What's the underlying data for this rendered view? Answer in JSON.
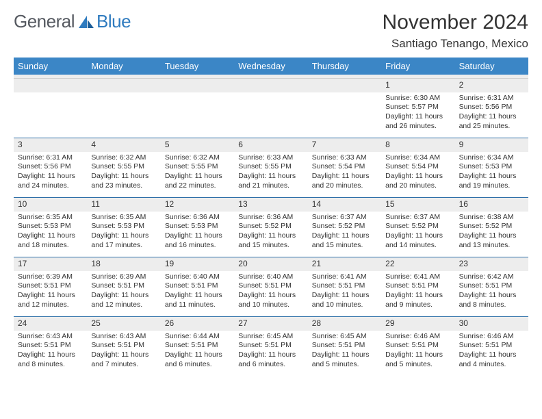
{
  "brand": {
    "text_a": "General",
    "text_b": "Blue",
    "mark_color": "#2f7bbf"
  },
  "title": "November 2024",
  "location": "Santiago Tenango, Mexico",
  "header_bg": "#3b86c6",
  "band_bg": "#ededed",
  "rule_color": "#2d6fa8",
  "text_color": "#333333",
  "weekdays": [
    "Sunday",
    "Monday",
    "Tuesday",
    "Wednesday",
    "Thursday",
    "Friday",
    "Saturday"
  ],
  "weeks": [
    [
      {
        "n": "",
        "empty": true
      },
      {
        "n": "",
        "empty": true
      },
      {
        "n": "",
        "empty": true
      },
      {
        "n": "",
        "empty": true
      },
      {
        "n": "",
        "empty": true
      },
      {
        "n": "1",
        "sunrise": "Sunrise: 6:30 AM",
        "sunset": "Sunset: 5:57 PM",
        "daylight1": "Daylight: 11 hours",
        "daylight2": "and 26 minutes."
      },
      {
        "n": "2",
        "sunrise": "Sunrise: 6:31 AM",
        "sunset": "Sunset: 5:56 PM",
        "daylight1": "Daylight: 11 hours",
        "daylight2": "and 25 minutes."
      }
    ],
    [
      {
        "n": "3",
        "sunrise": "Sunrise: 6:31 AM",
        "sunset": "Sunset: 5:56 PM",
        "daylight1": "Daylight: 11 hours",
        "daylight2": "and 24 minutes."
      },
      {
        "n": "4",
        "sunrise": "Sunrise: 6:32 AM",
        "sunset": "Sunset: 5:55 PM",
        "daylight1": "Daylight: 11 hours",
        "daylight2": "and 23 minutes."
      },
      {
        "n": "5",
        "sunrise": "Sunrise: 6:32 AM",
        "sunset": "Sunset: 5:55 PM",
        "daylight1": "Daylight: 11 hours",
        "daylight2": "and 22 minutes."
      },
      {
        "n": "6",
        "sunrise": "Sunrise: 6:33 AM",
        "sunset": "Sunset: 5:55 PM",
        "daylight1": "Daylight: 11 hours",
        "daylight2": "and 21 minutes."
      },
      {
        "n": "7",
        "sunrise": "Sunrise: 6:33 AM",
        "sunset": "Sunset: 5:54 PM",
        "daylight1": "Daylight: 11 hours",
        "daylight2": "and 20 minutes."
      },
      {
        "n": "8",
        "sunrise": "Sunrise: 6:34 AM",
        "sunset": "Sunset: 5:54 PM",
        "daylight1": "Daylight: 11 hours",
        "daylight2": "and 20 minutes."
      },
      {
        "n": "9",
        "sunrise": "Sunrise: 6:34 AM",
        "sunset": "Sunset: 5:53 PM",
        "daylight1": "Daylight: 11 hours",
        "daylight2": "and 19 minutes."
      }
    ],
    [
      {
        "n": "10",
        "sunrise": "Sunrise: 6:35 AM",
        "sunset": "Sunset: 5:53 PM",
        "daylight1": "Daylight: 11 hours",
        "daylight2": "and 18 minutes."
      },
      {
        "n": "11",
        "sunrise": "Sunrise: 6:35 AM",
        "sunset": "Sunset: 5:53 PM",
        "daylight1": "Daylight: 11 hours",
        "daylight2": "and 17 minutes."
      },
      {
        "n": "12",
        "sunrise": "Sunrise: 6:36 AM",
        "sunset": "Sunset: 5:53 PM",
        "daylight1": "Daylight: 11 hours",
        "daylight2": "and 16 minutes."
      },
      {
        "n": "13",
        "sunrise": "Sunrise: 6:36 AM",
        "sunset": "Sunset: 5:52 PM",
        "daylight1": "Daylight: 11 hours",
        "daylight2": "and 15 minutes."
      },
      {
        "n": "14",
        "sunrise": "Sunrise: 6:37 AM",
        "sunset": "Sunset: 5:52 PM",
        "daylight1": "Daylight: 11 hours",
        "daylight2": "and 15 minutes."
      },
      {
        "n": "15",
        "sunrise": "Sunrise: 6:37 AM",
        "sunset": "Sunset: 5:52 PM",
        "daylight1": "Daylight: 11 hours",
        "daylight2": "and 14 minutes."
      },
      {
        "n": "16",
        "sunrise": "Sunrise: 6:38 AM",
        "sunset": "Sunset: 5:52 PM",
        "daylight1": "Daylight: 11 hours",
        "daylight2": "and 13 minutes."
      }
    ],
    [
      {
        "n": "17",
        "sunrise": "Sunrise: 6:39 AM",
        "sunset": "Sunset: 5:51 PM",
        "daylight1": "Daylight: 11 hours",
        "daylight2": "and 12 minutes."
      },
      {
        "n": "18",
        "sunrise": "Sunrise: 6:39 AM",
        "sunset": "Sunset: 5:51 PM",
        "daylight1": "Daylight: 11 hours",
        "daylight2": "and 12 minutes."
      },
      {
        "n": "19",
        "sunrise": "Sunrise: 6:40 AM",
        "sunset": "Sunset: 5:51 PM",
        "daylight1": "Daylight: 11 hours",
        "daylight2": "and 11 minutes."
      },
      {
        "n": "20",
        "sunrise": "Sunrise: 6:40 AM",
        "sunset": "Sunset: 5:51 PM",
        "daylight1": "Daylight: 11 hours",
        "daylight2": "and 10 minutes."
      },
      {
        "n": "21",
        "sunrise": "Sunrise: 6:41 AM",
        "sunset": "Sunset: 5:51 PM",
        "daylight1": "Daylight: 11 hours",
        "daylight2": "and 10 minutes."
      },
      {
        "n": "22",
        "sunrise": "Sunrise: 6:41 AM",
        "sunset": "Sunset: 5:51 PM",
        "daylight1": "Daylight: 11 hours",
        "daylight2": "and 9 minutes."
      },
      {
        "n": "23",
        "sunrise": "Sunrise: 6:42 AM",
        "sunset": "Sunset: 5:51 PM",
        "daylight1": "Daylight: 11 hours",
        "daylight2": "and 8 minutes."
      }
    ],
    [
      {
        "n": "24",
        "sunrise": "Sunrise: 6:43 AM",
        "sunset": "Sunset: 5:51 PM",
        "daylight1": "Daylight: 11 hours",
        "daylight2": "and 8 minutes."
      },
      {
        "n": "25",
        "sunrise": "Sunrise: 6:43 AM",
        "sunset": "Sunset: 5:51 PM",
        "daylight1": "Daylight: 11 hours",
        "daylight2": "and 7 minutes."
      },
      {
        "n": "26",
        "sunrise": "Sunrise: 6:44 AM",
        "sunset": "Sunset: 5:51 PM",
        "daylight1": "Daylight: 11 hours",
        "daylight2": "and 6 minutes."
      },
      {
        "n": "27",
        "sunrise": "Sunrise: 6:45 AM",
        "sunset": "Sunset: 5:51 PM",
        "daylight1": "Daylight: 11 hours",
        "daylight2": "and 6 minutes."
      },
      {
        "n": "28",
        "sunrise": "Sunrise: 6:45 AM",
        "sunset": "Sunset: 5:51 PM",
        "daylight1": "Daylight: 11 hours",
        "daylight2": "and 5 minutes."
      },
      {
        "n": "29",
        "sunrise": "Sunrise: 6:46 AM",
        "sunset": "Sunset: 5:51 PM",
        "daylight1": "Daylight: 11 hours",
        "daylight2": "and 5 minutes."
      },
      {
        "n": "30",
        "sunrise": "Sunrise: 6:46 AM",
        "sunset": "Sunset: 5:51 PM",
        "daylight1": "Daylight: 11 hours",
        "daylight2": "and 4 minutes."
      }
    ]
  ]
}
